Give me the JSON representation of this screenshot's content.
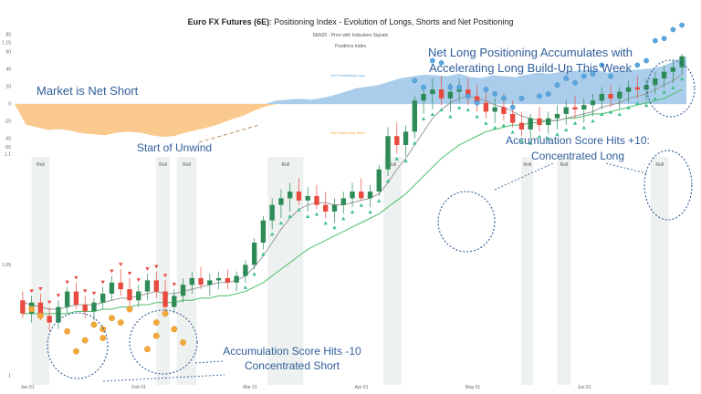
{
  "chart_data": {
    "type": "area+candlestick",
    "title_bold": "Euro FX Futures (6E)",
    "title_rest": ": Positioning Index - Evolution of Longs, Shorts and Net Positioning",
    "subtitle": "6EN25 - Price with Indicators Signals",
    "top_panel": {
      "title": "Positions Index",
      "ylim": [
        -55,
        90
      ],
      "yticks": [
        80,
        60,
        40,
        20,
        0,
        -20,
        -40,
        -50
      ],
      "series": [
        {
          "name": "Net Positioning Long",
          "color": "#a9cdea",
          "values": [
            0,
            -24,
            -27,
            -30,
            -29,
            -31,
            -34,
            -35,
            -36,
            -33,
            -32,
            -33,
            -36,
            -38,
            -37,
            -33,
            -30,
            -27,
            -23,
            -18,
            -14,
            -8,
            -3,
            4,
            5,
            6,
            5,
            7,
            10,
            14,
            18,
            20,
            22,
            26,
            30,
            32,
            34,
            33,
            32,
            35,
            31,
            30,
            33,
            32,
            31,
            34,
            36,
            35,
            37,
            38,
            39,
            40,
            36,
            38,
            39,
            40,
            41,
            44,
            50,
            55
          ]
        },
        {
          "name": "Net Positioning Short",
          "color": "#f9c98e"
        }
      ]
    },
    "bottom_panel": {
      "ylim": [
        0.999,
        1.162
      ],
      "yticks": [
        "1.15",
        "1.1",
        "1.05",
        "1"
      ],
      "ytick_values": [
        1.15,
        1.1,
        1.05,
        1.0
      ],
      "xticks": [
        "Jan 01",
        "Feb 01",
        "Mar 01",
        "Apr 01",
        "May 01",
        "Jun 01"
      ],
      "ohlc": [
        [
          1.034,
          1.038,
          1.026,
          1.028
        ],
        [
          1.028,
          1.036,
          1.024,
          1.033
        ],
        [
          1.033,
          1.037,
          1.025,
          1.027
        ],
        [
          1.027,
          1.031,
          1.02,
          1.024
        ],
        [
          1.024,
          1.034,
          1.021,
          1.031
        ],
        [
          1.031,
          1.04,
          1.028,
          1.038
        ],
        [
          1.038,
          1.042,
          1.03,
          1.032
        ],
        [
          1.032,
          1.036,
          1.026,
          1.029
        ],
        [
          1.029,
          1.035,
          1.025,
          1.033
        ],
        [
          1.033,
          1.04,
          1.03,
          1.037
        ],
        [
          1.037,
          1.045,
          1.034,
          1.042
        ],
        [
          1.042,
          1.048,
          1.036,
          1.039
        ],
        [
          1.039,
          1.044,
          1.03,
          1.034
        ],
        [
          1.034,
          1.041,
          1.031,
          1.038
        ],
        [
          1.038,
          1.046,
          1.034,
          1.043
        ],
        [
          1.043,
          1.047,
          1.035,
          1.038
        ],
        [
          1.038,
          1.043,
          1.029,
          1.031
        ],
        [
          1.031,
          1.039,
          1.028,
          1.036
        ],
        [
          1.036,
          1.044,
          1.033,
          1.041
        ],
        [
          1.041,
          1.047,
          1.037,
          1.044
        ],
        [
          1.044,
          1.049,
          1.039,
          1.041
        ],
        [
          1.041,
          1.046,
          1.036,
          1.043
        ],
        [
          1.043,
          1.047,
          1.039,
          1.044
        ],
        [
          1.044,
          1.048,
          1.039,
          1.042
        ],
        [
          1.042,
          1.047,
          1.038,
          1.045
        ],
        [
          1.045,
          1.052,
          1.042,
          1.05
        ],
        [
          1.05,
          1.062,
          1.048,
          1.06
        ],
        [
          1.06,
          1.072,
          1.057,
          1.07
        ],
        [
          1.07,
          1.08,
          1.066,
          1.077
        ],
        [
          1.077,
          1.084,
          1.071,
          1.08
        ],
        [
          1.08,
          1.087,
          1.074,
          1.083
        ],
        [
          1.083,
          1.089,
          1.077,
          1.079
        ],
        [
          1.079,
          1.085,
          1.074,
          1.081
        ],
        [
          1.081,
          1.086,
          1.075,
          1.077
        ],
        [
          1.077,
          1.083,
          1.071,
          1.074
        ],
        [
          1.074,
          1.08,
          1.069,
          1.077
        ],
        [
          1.077,
          1.083,
          1.073,
          1.08
        ],
        [
          1.08,
          1.087,
          1.076,
          1.083
        ],
        [
          1.083,
          1.089,
          1.079,
          1.08
        ],
        [
          1.08,
          1.086,
          1.076,
          1.083
        ],
        [
          1.083,
          1.095,
          1.081,
          1.093
        ],
        [
          1.093,
          1.112,
          1.09,
          1.108
        ],
        [
          1.108,
          1.114,
          1.1,
          1.104
        ],
        [
          1.104,
          1.113,
          1.099,
          1.11
        ],
        [
          1.11,
          1.126,
          1.107,
          1.124
        ],
        [
          1.124,
          1.131,
          1.118,
          1.127
        ],
        [
          1.127,
          1.134,
          1.12,
          1.129
        ],
        [
          1.129,
          1.135,
          1.122,
          1.125
        ],
        [
          1.125,
          1.132,
          1.119,
          1.128
        ],
        [
          1.128,
          1.134,
          1.123,
          1.129
        ],
        [
          1.129,
          1.134,
          1.122,
          1.126
        ],
        [
          1.126,
          1.131,
          1.119,
          1.123
        ],
        [
          1.123,
          1.128,
          1.116,
          1.119
        ],
        [
          1.119,
          1.125,
          1.114,
          1.121
        ],
        [
          1.121,
          1.127,
          1.115,
          1.118
        ],
        [
          1.118,
          1.124,
          1.112,
          1.114
        ],
        [
          1.114,
          1.119,
          1.108,
          1.111
        ],
        [
          1.111,
          1.118,
          1.107,
          1.116
        ],
        [
          1.116,
          1.121,
          1.11,
          1.113
        ],
        [
          1.113,
          1.119,
          1.109,
          1.116
        ],
        [
          1.116,
          1.122,
          1.111,
          1.118
        ],
        [
          1.118,
          1.124,
          1.113,
          1.121
        ],
        [
          1.121,
          1.126,
          1.116,
          1.12
        ],
        [
          1.12,
          1.125,
          1.114,
          1.122
        ],
        [
          1.122,
          1.127,
          1.117,
          1.124
        ],
        [
          1.124,
          1.13,
          1.12,
          1.127
        ],
        [
          1.127,
          1.131,
          1.121,
          1.125
        ],
        [
          1.125,
          1.13,
          1.12,
          1.128
        ],
        [
          1.128,
          1.133,
          1.123,
          1.13
        ],
        [
          1.13,
          1.135,
          1.125,
          1.129
        ],
        [
          1.129,
          1.134,
          1.124,
          1.131
        ],
        [
          1.131,
          1.137,
          1.127,
          1.134
        ],
        [
          1.134,
          1.14,
          1.13,
          1.137
        ],
        [
          1.137,
          1.142,
          1.132,
          1.139
        ],
        [
          1.139,
          1.145,
          1.136,
          1.144
        ]
      ],
      "ma_gray": [
        1.033,
        1.032,
        1.031,
        1.03,
        1.03,
        1.031,
        1.032,
        1.032,
        1.032,
        1.033,
        1.034,
        1.035,
        1.035,
        1.036,
        1.037,
        1.038,
        1.037,
        1.037,
        1.038,
        1.039,
        1.04,
        1.041,
        1.042,
        1.042,
        1.043,
        1.045,
        1.049,
        1.054,
        1.06,
        1.066,
        1.071,
        1.075,
        1.077,
        1.078,
        1.078,
        1.077,
        1.077,
        1.078,
        1.079,
        1.08,
        1.082,
        1.087,
        1.093,
        1.098,
        1.104,
        1.11,
        1.116,
        1.12,
        1.123,
        1.125,
        1.126,
        1.125,
        1.124,
        1.122,
        1.121,
        1.119,
        1.117,
        1.116,
        1.115,
        1.115,
        1.115,
        1.116,
        1.117,
        1.118,
        1.119,
        1.121,
        1.122,
        1.123,
        1.125,
        1.126,
        1.127,
        1.129,
        1.131,
        1.133,
        1.136
      ],
      "ma_green": [
        1.028,
        1.028,
        1.028,
        1.028,
        1.028,
        1.028,
        1.029,
        1.029,
        1.029,
        1.03,
        1.03,
        1.031,
        1.031,
        1.032,
        1.032,
        1.033,
        1.033,
        1.033,
        1.034,
        1.034,
        1.035,
        1.035,
        1.036,
        1.036,
        1.037,
        1.038,
        1.04,
        1.042,
        1.045,
        1.048,
        1.051,
        1.054,
        1.057,
        1.059,
        1.061,
        1.063,
        1.065,
        1.067,
        1.069,
        1.071,
        1.073,
        1.076,
        1.079,
        1.082,
        1.086,
        1.09,
        1.094,
        1.098,
        1.101,
        1.104,
        1.106,
        1.108,
        1.11,
        1.111,
        1.112,
        1.113,
        1.113,
        1.114,
        1.114,
        1.115,
        1.115,
        1.116,
        1.116,
        1.117,
        1.118,
        1.118,
        1.119,
        1.12,
        1.121,
        1.122,
        1.123,
        1.124,
        1.125,
        1.127,
        1.129
      ],
      "roll_label": "Roll",
      "roll_zones": [
        [
          1.5,
          3.5
        ],
        [
          15.5,
          17.0
        ],
        [
          17.8,
          20.0
        ],
        [
          28.0,
          32.0
        ],
        [
          41.0,
          43.0
        ],
        [
          56.5,
          57.8
        ],
        [
          60.5,
          62.0
        ],
        [
          71.0,
          73.0
        ]
      ],
      "sell_signal_days": [
        1,
        2,
        3,
        4,
        5,
        6,
        7,
        8,
        9,
        10,
        11,
        12,
        13,
        14,
        15,
        16,
        17
      ],
      "buy_signal_days": [
        25,
        26,
        27,
        28,
        29,
        30,
        31,
        32,
        33,
        34,
        35,
        36,
        37,
        38,
        39,
        40,
        41,
        42,
        43,
        44,
        45,
        46,
        47,
        48,
        49,
        50,
        51,
        52,
        53,
        54,
        55,
        56,
        57,
        58,
        59,
        60,
        61,
        62,
        63,
        64,
        65,
        66,
        67,
        68,
        69,
        70,
        71,
        72,
        73,
        74
      ],
      "orange_dots": [
        [
          1,
          1.03
        ],
        [
          2,
          1.027
        ],
        [
          5,
          1.02
        ],
        [
          6,
          1.011
        ],
        [
          7,
          1.016
        ],
        [
          8,
          1.023
        ],
        [
          9,
          1.021
        ],
        [
          9,
          1.017
        ],
        [
          10,
          1.026
        ],
        [
          11,
          1.024
        ],
        [
          12,
          1.03
        ],
        [
          14,
          1.012
        ],
        [
          15,
          1.018
        ],
        [
          15,
          1.024
        ],
        [
          16,
          1.028
        ],
        [
          17,
          1.021
        ],
        [
          18,
          1.015
        ]
      ],
      "blue_dots": [
        [
          44,
          1.133
        ],
        [
          45,
          1.13
        ],
        [
          46,
          1.142
        ],
        [
          47,
          1.141
        ],
        [
          48,
          1.13
        ],
        [
          49,
          1.13
        ],
        [
          50,
          1.126
        ],
        [
          51,
          1.123
        ],
        [
          52,
          1.129
        ],
        [
          53,
          1.127
        ],
        [
          54,
          1.125
        ],
        [
          55,
          1.121
        ],
        [
          56,
          1.125
        ],
        [
          58,
          1.126
        ],
        [
          59,
          1.127
        ],
        [
          60,
          1.131
        ],
        [
          61,
          1.134
        ],
        [
          62,
          1.132
        ],
        [
          63,
          1.135
        ],
        [
          64,
          1.136
        ],
        [
          65,
          1.14
        ],
        [
          66,
          1.135
        ],
        [
          69,
          1.14
        ],
        [
          70,
          1.142
        ],
        [
          71,
          1.151
        ],
        [
          72,
          1.152
        ],
        [
          73,
          1.156
        ],
        [
          74,
          1.158
        ]
      ],
      "up_color": "#2e8b57",
      "down_color": "#e84a3f",
      "sell_color": "#e84a3f",
      "buy_color": "#3cc08a",
      "gray_line_color": "#9a9a9a",
      "green_line_color": "#4cbf6a",
      "orange_color": "#f2a93b",
      "blue_color": "#5ba7e0"
    }
  },
  "annotations": {
    "net_short": "Market is Net Short",
    "unwind": "Start of Unwind",
    "net_long_line1": "Net Long Positioning Accumulates with",
    "net_long_line2": "Accelerating Long Build-Up This Week",
    "score_plus_line1": "Accumulation Score Hits +10:",
    "score_plus_line2": "Concentrated Long",
    "score_minus_line1": "Accumulation Score Hits -10",
    "score_minus_line2": "Concentrated Short"
  },
  "legend": {
    "long_label": "Net Positioning Long",
    "short_label": "Net Positioning Short"
  }
}
